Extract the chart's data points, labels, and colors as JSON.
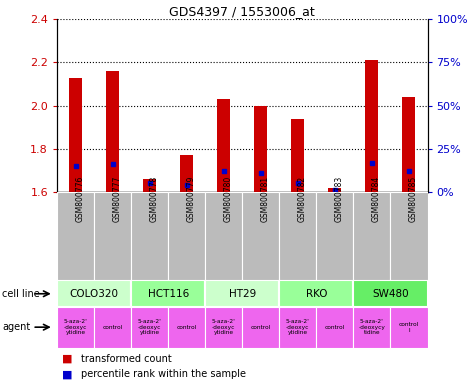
{
  "title": "GDS4397 / 1553006_at",
  "samples": [
    "GSM800776",
    "GSM800777",
    "GSM800778",
    "GSM800779",
    "GSM800780",
    "GSM800781",
    "GSM800782",
    "GSM800783",
    "GSM800784",
    "GSM800785"
  ],
  "red_values": [
    2.13,
    2.16,
    1.66,
    1.77,
    2.03,
    2.0,
    1.94,
    1.62,
    2.21,
    2.04
  ],
  "blue_percentiles": [
    15,
    16,
    5,
    4,
    12,
    11,
    5,
    1,
    17,
    12
  ],
  "ylim_left": [
    1.6,
    2.4
  ],
  "ylim_right": [
    0,
    100
  ],
  "yticks_left": [
    1.6,
    1.8,
    2.0,
    2.2,
    2.4
  ],
  "yticks_right": [
    0,
    25,
    50,
    75,
    100
  ],
  "ytick_labels_right": [
    "0%",
    "25%",
    "50%",
    "75%",
    "100%"
  ],
  "cell_lines": [
    {
      "name": "COLO320",
      "start": 0,
      "end": 2,
      "color": "#ccffcc"
    },
    {
      "name": "HCT116",
      "start": 2,
      "end": 4,
      "color": "#99ff99"
    },
    {
      "name": "HT29",
      "start": 4,
      "end": 6,
      "color": "#ccffcc"
    },
    {
      "name": "RKO",
      "start": 6,
      "end": 8,
      "color": "#99ff99"
    },
    {
      "name": "SW480",
      "start": 8,
      "end": 10,
      "color": "#66ee66"
    }
  ],
  "agents": [
    {
      "name": "5-aza-2'\n-deoxyc\nytidine",
      "start": 0,
      "end": 1,
      "color": "#ee66ee"
    },
    {
      "name": "control",
      "start": 1,
      "end": 2,
      "color": "#ee66ee"
    },
    {
      "name": "5-aza-2'\n-deoxyc\nytidine",
      "start": 2,
      "end": 3,
      "color": "#ee66ee"
    },
    {
      "name": "control",
      "start": 3,
      "end": 4,
      "color": "#ee66ee"
    },
    {
      "name": "5-aza-2'\n-deoxyc\nytidine",
      "start": 4,
      "end": 5,
      "color": "#ee66ee"
    },
    {
      "name": "control",
      "start": 5,
      "end": 6,
      "color": "#ee66ee"
    },
    {
      "name": "5-aza-2'\n-deoxyc\nytidine",
      "start": 6,
      "end": 7,
      "color": "#ee66ee"
    },
    {
      "name": "control",
      "start": 7,
      "end": 8,
      "color": "#ee66ee"
    },
    {
      "name": "5-aza-2'\n-deoxycy\ntidine",
      "start": 8,
      "end": 9,
      "color": "#ee66ee"
    },
    {
      "name": "control\nl",
      "start": 9,
      "end": 10,
      "color": "#ee66ee"
    }
  ],
  "bar_color_red": "#cc0000",
  "bar_color_blue": "#0000cc",
  "bar_width": 0.35,
  "sample_bg": "#bbbbbb",
  "left_label_color": "#cc0000",
  "right_label_color": "#0000cc"
}
